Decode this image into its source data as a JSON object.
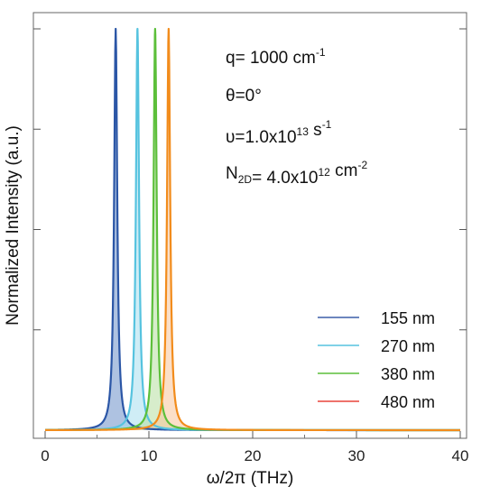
{
  "chart_data": {
    "type": "line",
    "xlabel": "ω/2π (THz)",
    "ylabel": "Normalized Intensity (a.u.)",
    "xlim": [
      0,
      40
    ],
    "ylim": [
      0,
      1
    ],
    "x_ticks": [
      0,
      10,
      20,
      30,
      40
    ],
    "y_tick_labels_shown": false,
    "legend_position": "lower-right",
    "annotations": [
      {
        "parts": [
          {
            "text": "q= 1000 cm"
          },
          {
            "text": "-1",
            "style": "sup"
          }
        ]
      },
      {
        "parts": [
          {
            "text": "θ=0°"
          }
        ]
      },
      {
        "parts": [
          {
            "text": "υ=1.0x10"
          },
          {
            "text": "13",
            "style": "sup"
          },
          {
            "text": " s"
          },
          {
            "text": "-1",
            "style": "sup"
          }
        ]
      },
      {
        "parts": [
          {
            "text": "N"
          },
          {
            "text": "2D",
            "style": "sub"
          },
          {
            "text": "= 4.0x10"
          },
          {
            "text": "12",
            "style": "sup"
          },
          {
            "text": " cm"
          },
          {
            "text": "-2",
            "style": "sup"
          }
        ]
      }
    ],
    "series": [
      {
        "name": "155 nm",
        "peak_x": 6.8,
        "peak_y": 1.0,
        "hwhm": 0.18,
        "line_color": "#2b56a6",
        "fill_color": "#6c8fc9",
        "legend_color": "#3b5fa8"
      },
      {
        "name": "270 nm",
        "peak_x": 8.9,
        "peak_y": 1.0,
        "hwhm": 0.18,
        "line_color": "#56c3df",
        "fill_color": "#a8dfee",
        "legend_color": "#56c3df"
      },
      {
        "name": "380 nm",
        "peak_x": 10.6,
        "peak_y": 1.0,
        "hwhm": 0.18,
        "line_color": "#5cbf3a",
        "fill_color": "#b6dfa0",
        "legend_color": "#5cbf3a"
      },
      {
        "name": "480 nm",
        "peak_x": 11.9,
        "peak_y": 1.0,
        "hwhm": 0.18,
        "line_color": "#f28c1c",
        "fill_color": "#f7c59a",
        "legend_color": "#e8443a"
      }
    ]
  }
}
